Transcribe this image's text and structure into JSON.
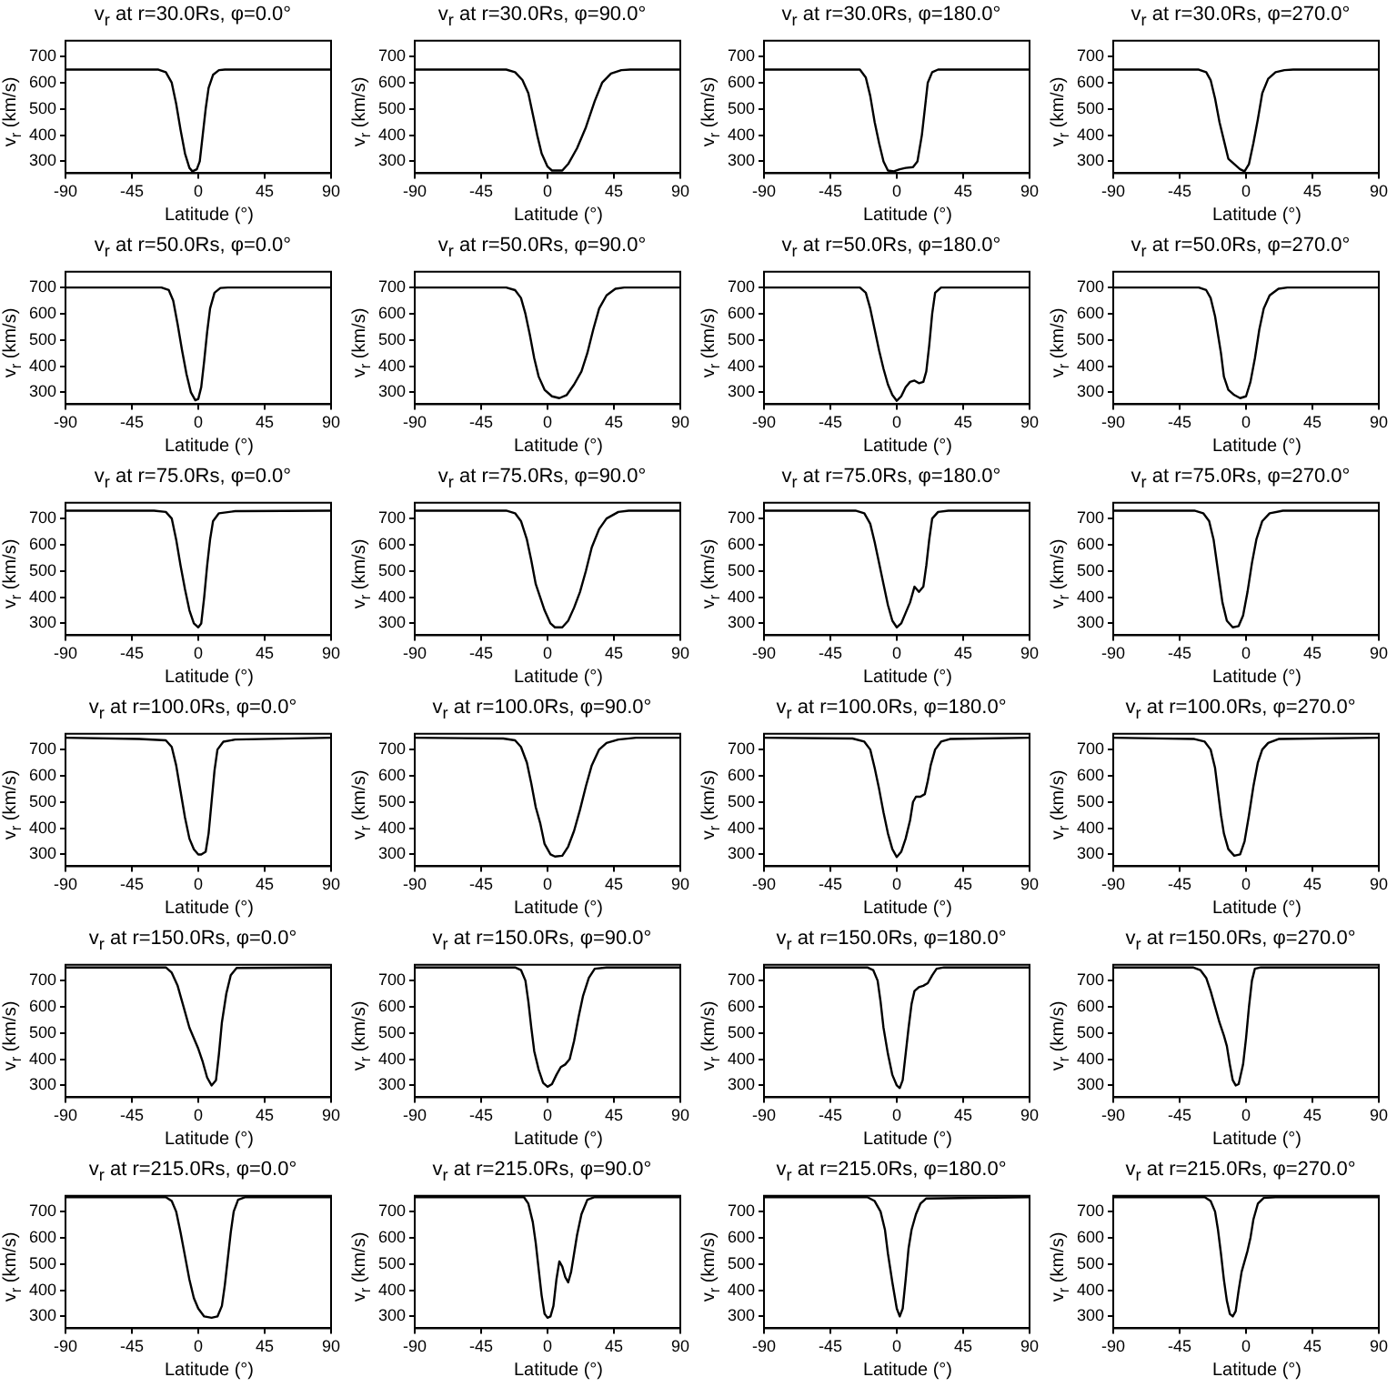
{
  "chart_data": [
    {
      "type": "line",
      "title": "v$_{r}$ at r=30.0Rs, φ=0.0°",
      "xlabel": "Latitude (°)",
      "ylabel": "v$_{r}$ (km/s)",
      "color": "#000000",
      "x": [
        -90,
        -27,
        -22,
        -18,
        -15,
        -12,
        -9,
        -6,
        -4,
        -1,
        1,
        3,
        5,
        7,
        10,
        14,
        18,
        90
      ],
      "values": [
        650,
        650,
        640,
        600,
        520,
        420,
        330,
        275,
        262,
        270,
        300,
        400,
        500,
        580,
        630,
        648,
        650,
        650
      ],
      "xlim": [
        -90,
        90
      ],
      "xticks": [
        -90,
        -45,
        0,
        45,
        90
      ],
      "ylim": [
        255,
        760
      ],
      "yticks": [
        300,
        400,
        500,
        600,
        700
      ]
    },
    {
      "type": "line",
      "title": "v$_{r}$ at r=30.0Rs, φ=90.0°",
      "xlabel": "Latitude (°)",
      "ylabel": "v$_{r}$ (km/s)",
      "color": "#000000",
      "x": [
        -90,
        -28,
        -22,
        -17,
        -13,
        -10,
        -7,
        -4,
        0,
        3,
        10,
        14,
        20,
        26,
        32,
        37,
        43,
        50,
        56,
        90
      ],
      "values": [
        650,
        650,
        640,
        610,
        560,
        480,
        400,
        330,
        280,
        265,
        265,
        290,
        350,
        430,
        530,
        600,
        635,
        648,
        650,
        650
      ],
      "xlim": [
        -90,
        90
      ],
      "xticks": [
        -90,
        -45,
        0,
        45,
        90
      ],
      "ylim": [
        255,
        760
      ],
      "yticks": [
        300,
        400,
        500,
        600,
        700
      ]
    },
    {
      "type": "line",
      "title": "v$_{r}$ at r=30.0Rs, φ=180.0°",
      "xlabel": "Latitude (°)",
      "ylabel": "v$_{r}$ (km/s)",
      "color": "#000000",
      "x": [
        -90,
        -25,
        -21,
        -18,
        -15,
        -12,
        -9,
        -6,
        -2,
        2,
        6,
        11,
        14,
        17,
        19,
        21,
        24,
        28,
        90
      ],
      "values": [
        650,
        650,
        620,
        550,
        450,
        370,
        300,
        265,
        262,
        270,
        275,
        278,
        300,
        400,
        500,
        600,
        640,
        650,
        650
      ],
      "xlim": [
        -90,
        90
      ],
      "xticks": [
        -90,
        -45,
        0,
        45,
        90
      ],
      "ylim": [
        255,
        760
      ],
      "yticks": [
        300,
        400,
        500,
        600,
        700
      ]
    },
    {
      "type": "line",
      "title": "v$_{r}$ at r=30.0Rs, φ=270.0°",
      "xlabel": "Latitude (°)",
      "ylabel": "v$_{r}$ (km/s)",
      "color": "#000000",
      "x": [
        -90,
        -32,
        -27,
        -24,
        -21,
        -18,
        -15,
        -12,
        -8,
        -4,
        -1,
        2,
        5,
        8,
        11,
        15,
        20,
        26,
        32,
        90
      ],
      "values": [
        650,
        650,
        640,
        610,
        540,
        450,
        380,
        310,
        290,
        270,
        262,
        290,
        370,
        460,
        560,
        615,
        640,
        648,
        650,
        650
      ],
      "xlim": [
        -90,
        90
      ],
      "xticks": [
        -90,
        -45,
        0,
        45,
        90
      ],
      "ylim": [
        255,
        760
      ],
      "yticks": [
        300,
        400,
        500,
        600,
        700
      ]
    },
    {
      "type": "line",
      "title": "v$_{r}$ at r=50.0Rs, φ=0.0°",
      "xlabel": "Latitude (°)",
      "ylabel": "v$_{r}$ (km/s)",
      "color": "#000000",
      "x": [
        -90,
        -25,
        -20,
        -17,
        -14,
        -11,
        -8,
        -5,
        -2,
        0,
        2,
        4,
        6,
        8,
        11,
        15,
        20,
        90
      ],
      "values": [
        700,
        700,
        690,
        650,
        560,
        460,
        370,
        300,
        270,
        275,
        320,
        420,
        530,
        620,
        680,
        698,
        700,
        700
      ],
      "xlim": [
        -90,
        90
      ],
      "xticks": [
        -90,
        -45,
        0,
        45,
        90
      ],
      "ylim": [
        255,
        760
      ],
      "yticks": [
        300,
        400,
        500,
        600,
        700
      ]
    },
    {
      "type": "line",
      "title": "v$_{r}$ at r=50.0Rs, φ=90.0°",
      "xlabel": "Latitude (°)",
      "ylabel": "v$_{r}$ (km/s)",
      "color": "#000000",
      "x": [
        -90,
        -28,
        -22,
        -18,
        -15,
        -12,
        -9,
        -6,
        -2,
        3,
        8,
        13,
        18,
        23,
        27,
        31,
        35,
        40,
        46,
        52,
        90
      ],
      "values": [
        700,
        700,
        690,
        660,
        600,
        520,
        430,
        360,
        310,
        285,
        278,
        290,
        330,
        380,
        450,
        540,
        620,
        670,
        695,
        700,
        700
      ],
      "xlim": [
        -90,
        90
      ],
      "xticks": [
        -90,
        -45,
        0,
        45,
        90
      ],
      "ylim": [
        255,
        760
      ],
      "yticks": [
        300,
        400,
        500,
        600,
        700
      ]
    },
    {
      "type": "line",
      "title": "v$_{r}$ at r=50.0Rs, φ=180.0°",
      "xlabel": "Latitude (°)",
      "ylabel": "v$_{r}$ (km/s)",
      "color": "#000000",
      "x": [
        -90,
        -25,
        -21,
        -18,
        -15,
        -12,
        -9,
        -6,
        -3,
        0,
        3,
        6,
        9,
        12,
        15,
        18,
        20,
        22,
        24,
        26,
        30,
        90
      ],
      "values": [
        700,
        700,
        680,
        620,
        540,
        460,
        390,
        330,
        290,
        268,
        285,
        320,
        340,
        345,
        335,
        340,
        380,
        480,
        600,
        680,
        700,
        700
      ],
      "xlim": [
        -90,
        90
      ],
      "xticks": [
        -90,
        -45,
        0,
        45,
        90
      ],
      "ylim": [
        255,
        760
      ],
      "yticks": [
        300,
        400,
        500,
        600,
        700
      ]
    },
    {
      "type": "line",
      "title": "v$_{r}$ at r=50.0Rs, φ=270.0°",
      "xlabel": "Latitude (°)",
      "ylabel": "v$_{r}$ (km/s)",
      "color": "#000000",
      "x": [
        -90,
        -32,
        -27,
        -24,
        -21,
        -19,
        -17,
        -15,
        -12,
        -8,
        -4,
        0,
        3,
        6,
        9,
        12,
        16,
        22,
        28,
        90
      ],
      "values": [
        700,
        700,
        690,
        660,
        590,
        520,
        450,
        360,
        310,
        290,
        278,
        285,
        340,
        430,
        540,
        620,
        670,
        695,
        700,
        700
      ],
      "xlim": [
        -90,
        90
      ],
      "xticks": [
        -90,
        -45,
        0,
        45,
        90
      ],
      "ylim": [
        255,
        760
      ],
      "yticks": [
        300,
        400,
        500,
        600,
        700
      ]
    },
    {
      "type": "line",
      "title": "v$_{r}$ at r=75.0Rs, φ=0.0°",
      "xlabel": "Latitude (°)",
      "ylabel": "v$_{r}$ (km/s)",
      "color": "#000000",
      "x": [
        -90,
        -30,
        -22,
        -18,
        -15,
        -12,
        -9,
        -6,
        -3,
        0,
        2,
        4,
        6,
        8,
        10,
        14,
        25,
        90
      ],
      "values": [
        730,
        730,
        725,
        700,
        620,
        520,
        430,
        350,
        300,
        285,
        300,
        400,
        520,
        620,
        690,
        720,
        728,
        730
      ],
      "xlim": [
        -90,
        90
      ],
      "xticks": [
        -90,
        -45,
        0,
        45,
        90
      ],
      "ylim": [
        255,
        760
      ],
      "yticks": [
        300,
        400,
        500,
        600,
        700
      ]
    },
    {
      "type": "line",
      "title": "v$_{r}$ at r=75.0Rs, φ=90.0°",
      "xlabel": "Latitude (°)",
      "ylabel": "v$_{r}$ (km/s)",
      "color": "#000000",
      "x": [
        -90,
        -28,
        -22,
        -18,
        -14,
        -11,
        -8,
        -5,
        -2,
        2,
        5,
        10,
        14,
        18,
        22,
        26,
        30,
        35,
        40,
        48,
        55,
        90
      ],
      "values": [
        730,
        730,
        720,
        690,
        620,
        540,
        450,
        400,
        350,
        300,
        285,
        285,
        310,
        360,
        420,
        500,
        590,
        660,
        700,
        725,
        730,
        730
      ],
      "xlim": [
        -90,
        90
      ],
      "xticks": [
        -90,
        -45,
        0,
        45,
        90
      ],
      "ylim": [
        255,
        760
      ],
      "yticks": [
        300,
        400,
        500,
        600,
        700
      ]
    },
    {
      "type": "line",
      "title": "v$_{r}$ at r=75.0Rs, φ=180.0°",
      "xlabel": "Latitude (°)",
      "ylabel": "v$_{r}$ (km/s)",
      "color": "#000000",
      "x": [
        -90,
        -28,
        -22,
        -18,
        -15,
        -12,
        -9,
        -6,
        -3,
        0,
        3,
        6,
        9,
        12,
        15,
        18,
        20,
        22,
        24,
        28,
        35,
        90
      ],
      "values": [
        730,
        730,
        720,
        680,
        610,
        530,
        450,
        370,
        310,
        285,
        300,
        340,
        380,
        440,
        420,
        440,
        520,
        620,
        700,
        725,
        730,
        730
      ],
      "xlim": [
        -90,
        90
      ],
      "xticks": [
        -90,
        -45,
        0,
        45,
        90
      ],
      "ylim": [
        255,
        760
      ],
      "yticks": [
        300,
        400,
        500,
        600,
        700
      ]
    },
    {
      "type": "line",
      "title": "v$_{r}$ at r=75.0Rs, φ=270.0°",
      "xlabel": "Latitude (°)",
      "ylabel": "v$_{r}$ (km/s)",
      "color": "#000000",
      "x": [
        -90,
        -35,
        -29,
        -25,
        -22,
        -20,
        -18,
        -16,
        -13,
        -9,
        -5,
        -2,
        1,
        4,
        7,
        11,
        16,
        25,
        90
      ],
      "values": [
        730,
        730,
        720,
        690,
        620,
        540,
        460,
        380,
        310,
        285,
        290,
        330,
        420,
        530,
        620,
        690,
        720,
        730,
        730
      ],
      "xlim": [
        -90,
        90
      ],
      "xticks": [
        -90,
        -45,
        0,
        45,
        90
      ],
      "ylim": [
        255,
        760
      ],
      "yticks": [
        300,
        400,
        500,
        600,
        700
      ]
    },
    {
      "type": "line",
      "title": "v$_{r}$ at r=100.0Rs, φ=0.0°",
      "xlabel": "Latitude (°)",
      "ylabel": "v$_{r}$ (km/s)",
      "color": "#000000",
      "x": [
        -90,
        -40,
        -22,
        -18,
        -15,
        -12,
        -9,
        -6,
        -3,
        0,
        2,
        5,
        7,
        9,
        11,
        13,
        17,
        25,
        90
      ],
      "values": [
        745,
        740,
        735,
        710,
        640,
        540,
        440,
        360,
        320,
        300,
        300,
        310,
        380,
        500,
        620,
        700,
        730,
        738,
        745
      ],
      "xlim": [
        -90,
        90
      ],
      "xticks": [
        -90,
        -45,
        0,
        45,
        90
      ],
      "ylim": [
        255,
        760
      ],
      "yticks": [
        300,
        400,
        500,
        600,
        700
      ]
    },
    {
      "type": "line",
      "title": "v$_{r}$ at r=100.0Rs, φ=90.0°",
      "xlabel": "Latitude (°)",
      "ylabel": "v$_{r}$ (km/s)",
      "color": "#000000",
      "x": [
        -90,
        -30,
        -22,
        -18,
        -14,
        -11,
        -8,
        -5,
        -2,
        2,
        5,
        10,
        14,
        18,
        22,
        26,
        30,
        35,
        40,
        48,
        60,
        90
      ],
      "values": [
        745,
        742,
        735,
        710,
        650,
        570,
        480,
        420,
        340,
        300,
        292,
        295,
        330,
        390,
        470,
        560,
        640,
        700,
        725,
        738,
        745,
        745
      ],
      "xlim": [
        -90,
        90
      ],
      "xticks": [
        -90,
        -45,
        0,
        45,
        90
      ],
      "ylim": [
        255,
        760
      ],
      "yticks": [
        300,
        400,
        500,
        600,
        700
      ]
    },
    {
      "type": "line",
      "title": "v$_{r}$ at r=100.0Rs, φ=180.0°",
      "xlabel": "Latitude (°)",
      "ylabel": "v$_{r}$ (km/s)",
      "color": "#000000",
      "x": [
        -90,
        -30,
        -22,
        -18,
        -15,
        -12,
        -9,
        -6,
        -3,
        0,
        3,
        6,
        9,
        11,
        13,
        16,
        19,
        21,
        23,
        26,
        30,
        36,
        90
      ],
      "values": [
        745,
        742,
        730,
        700,
        630,
        550,
        460,
        380,
        320,
        290,
        310,
        360,
        430,
        500,
        520,
        520,
        530,
        580,
        640,
        700,
        730,
        740,
        745
      ],
      "xlim": [
        -90,
        90
      ],
      "xticks": [
        -90,
        -45,
        0,
        45,
        90
      ],
      "ylim": [
        255,
        760
      ],
      "yticks": [
        300,
        400,
        500,
        600,
        700
      ]
    },
    {
      "type": "line",
      "title": "v$_{r}$ at r=100.0Rs, φ=270.0°",
      "xlabel": "Latitude (°)",
      "ylabel": "v$_{r}$ (km/s)",
      "color": "#000000",
      "x": [
        -90,
        -35,
        -28,
        -24,
        -21,
        -19,
        -17,
        -15,
        -12,
        -8,
        -4,
        -1,
        2,
        5,
        8,
        11,
        15,
        22,
        90
      ],
      "values": [
        745,
        740,
        730,
        700,
        630,
        540,
        450,
        380,
        320,
        295,
        300,
        350,
        450,
        560,
        650,
        700,
        725,
        740,
        745
      ],
      "xlim": [
        -90,
        90
      ],
      "xticks": [
        -90,
        -45,
        0,
        45,
        90
      ],
      "ylim": [
        255,
        760
      ],
      "yticks": [
        300,
        400,
        500,
        600,
        700
      ]
    },
    {
      "type": "line",
      "title": "v$_{r}$ at r=150.0Rs, φ=0.0°",
      "xlabel": "Latitude (°)",
      "ylabel": "v$_{r}$ (km/s)",
      "color": "#000000",
      "x": [
        -90,
        -22,
        -18,
        -14,
        -10,
        -6,
        -3,
        0,
        3,
        6,
        9,
        12,
        14,
        16,
        19,
        22,
        26,
        90
      ],
      "values": [
        750,
        750,
        730,
        680,
        600,
        520,
        480,
        440,
        390,
        330,
        300,
        320,
        420,
        540,
        650,
        720,
        748,
        750
      ],
      "xlim": [
        -90,
        90
      ],
      "xticks": [
        -90,
        -45,
        0,
        45,
        90
      ],
      "ylim": [
        255,
        760
      ],
      "yticks": [
        300,
        400,
        500,
        600,
        700
      ]
    },
    {
      "type": "line",
      "title": "v$_{r}$ at r=150.0Rs, φ=90.0°",
      "xlabel": "Latitude (°)",
      "ylabel": "v$_{r}$ (km/s)",
      "color": "#000000",
      "x": [
        -90,
        -22,
        -18,
        -15,
        -13,
        -11,
        -9,
        -6,
        -3,
        0,
        3,
        6,
        9,
        12,
        15,
        18,
        21,
        24,
        28,
        32,
        40,
        90
      ],
      "values": [
        750,
        750,
        740,
        700,
        620,
        520,
        430,
        360,
        310,
        295,
        305,
        340,
        370,
        380,
        400,
        470,
        560,
        640,
        710,
        745,
        750,
        750
      ],
      "xlim": [
        -90,
        90
      ],
      "xticks": [
        -90,
        -45,
        0,
        45,
        90
      ],
      "ylim": [
        255,
        760
      ],
      "yticks": [
        300,
        400,
        500,
        600,
        700
      ]
    },
    {
      "type": "line",
      "title": "v$_{r}$ at r=150.0Rs, φ=180.0°",
      "xlabel": "Latitude (°)",
      "ylabel": "v$_{r}$ (km/s)",
      "color": "#000000",
      "x": [
        -90,
        -20,
        -16,
        -13,
        -11,
        -9,
        -6,
        -3,
        0,
        2,
        4,
        6,
        8,
        10,
        12,
        15,
        18,
        21,
        24,
        27,
        32,
        90
      ],
      "values": [
        750,
        750,
        740,
        700,
        620,
        520,
        420,
        340,
        300,
        290,
        320,
        420,
        520,
        610,
        660,
        675,
        680,
        690,
        720,
        745,
        750,
        750
      ],
      "xlim": [
        -90,
        90
      ],
      "xticks": [
        -90,
        -45,
        0,
        45,
        90
      ],
      "ylim": [
        255,
        760
      ],
      "yticks": [
        300,
        400,
        500,
        600,
        700
      ]
    },
    {
      "type": "line",
      "title": "v$_{r}$ at r=150.0Rs, φ=270.0°",
      "xlabel": "Latitude (°)",
      "ylabel": "v$_{r}$ (km/s)",
      "color": "#000000",
      "x": [
        -90,
        -36,
        -31,
        -27,
        -24,
        -21,
        -18,
        -15,
        -13,
        -11,
        -9,
        -7,
        -5,
        -2,
        0,
        2,
        4,
        6,
        10,
        90
      ],
      "values": [
        750,
        750,
        740,
        710,
        660,
        600,
        540,
        490,
        450,
        380,
        320,
        300,
        305,
        380,
        480,
        600,
        700,
        745,
        750,
        750
      ],
      "xlim": [
        -90,
        90
      ],
      "xticks": [
        -90,
        -45,
        0,
        45,
        90
      ],
      "ylim": [
        255,
        760
      ],
      "yticks": [
        300,
        400,
        500,
        600,
        700
      ]
    },
    {
      "type": "line",
      "title": "v$_{r}$ at r=215.0Rs, φ=0.0°",
      "xlabel": "Latitude (°)",
      "ylabel": "v$_{r}$ (km/s)",
      "color": "#000000",
      "x": [
        -90,
        -22,
        -18,
        -15,
        -12,
        -9,
        -6,
        -3,
        0,
        4,
        9,
        13,
        16,
        18,
        20,
        22,
        24,
        27,
        32,
        90
      ],
      "values": [
        755,
        755,
        740,
        700,
        620,
        530,
        440,
        370,
        330,
        300,
        295,
        300,
        340,
        420,
        520,
        620,
        700,
        745,
        755,
        755
      ],
      "xlim": [
        -90,
        90
      ],
      "xticks": [
        -90,
        -45,
        0,
        45,
        90
      ],
      "ylim": [
        255,
        760
      ],
      "yticks": [
        300,
        400,
        500,
        600,
        700
      ]
    },
    {
      "type": "line",
      "title": "v$_{r}$ at r=215.0Rs, φ=90.0°",
      "xlabel": "Latitude (°)",
      "ylabel": "v$_{r}$ (km/s)",
      "color": "#000000",
      "x": [
        -90,
        -16,
        -13,
        -10,
        -8,
        -6,
        -4,
        -2,
        0,
        2,
        4,
        6,
        8,
        10,
        12,
        14,
        16,
        18,
        20,
        23,
        27,
        32,
        90
      ],
      "values": [
        755,
        755,
        730,
        660,
        580,
        480,
        380,
        310,
        295,
        300,
        340,
        440,
        510,
        490,
        450,
        430,
        470,
        540,
        610,
        690,
        745,
        755,
        755
      ],
      "xlim": [
        -90,
        90
      ],
      "xticks": [
        -90,
        -45,
        0,
        45,
        90
      ],
      "ylim": [
        255,
        760
      ],
      "yticks": [
        300,
        400,
        500,
        600,
        700
      ]
    },
    {
      "type": "line",
      "title": "v$_{r}$ at r=215.0Rs, φ=180.0°",
      "xlabel": "Latitude (°)",
      "ylabel": "v$_{r}$ (km/s)",
      "color": "#000000",
      "x": [
        -90,
        -20,
        -15,
        -11,
        -8,
        -6,
        -3,
        0,
        2,
        4,
        6,
        8,
        10,
        13,
        16,
        20,
        90
      ],
      "values": [
        755,
        755,
        740,
        700,
        630,
        540,
        430,
        330,
        300,
        330,
        440,
        560,
        630,
        690,
        730,
        750,
        755
      ],
      "xlim": [
        -90,
        90
      ],
      "xticks": [
        -90,
        -45,
        0,
        45,
        90
      ],
      "ylim": [
        255,
        760
      ],
      "yticks": [
        300,
        400,
        500,
        600,
        700
      ]
    },
    {
      "type": "line",
      "title": "v$_{r}$ at r=215.0Rs, φ=270.0°",
      "xlabel": "Latitude (°)",
      "ylabel": "v$_{r}$ (km/s)",
      "color": "#000000",
      "x": [
        -90,
        -28,
        -24,
        -21,
        -19,
        -17,
        -15,
        -13,
        -11,
        -9,
        -7,
        -5,
        -3,
        -1,
        1,
        3,
        5,
        8,
        12,
        20,
        90
      ],
      "values": [
        755,
        755,
        740,
        700,
        630,
        540,
        440,
        360,
        310,
        300,
        320,
        400,
        470,
        510,
        550,
        600,
        670,
        730,
        752,
        755,
        755
      ],
      "xlim": [
        -90,
        90
      ],
      "xticks": [
        -90,
        -45,
        0,
        45,
        90
      ],
      "ylim": [
        255,
        760
      ],
      "yticks": [
        300,
        400,
        500,
        600,
        700
      ]
    }
  ]
}
